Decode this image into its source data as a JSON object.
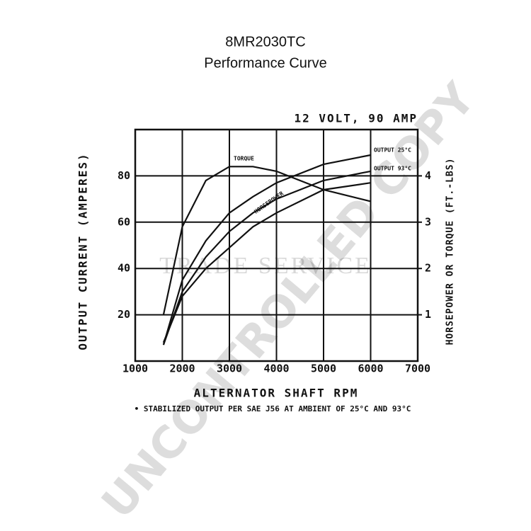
{
  "chart_data": {
    "type": "line",
    "title": "8MR2030TC",
    "subtitle": "Performance Curve",
    "annotation": "12 VOLT, 90 AMP",
    "x_label": "ALTERNATOR SHAFT RPM",
    "y_label": "OUTPUT CURRENT (AMPERES)",
    "y2_label": "HORSEPOWER OR TORQUE (FT.-LBS)",
    "footnote": "• STABILIZED OUTPUT PER SAE J56 AT AMBIENT OF 25°C AND 93°C",
    "watermark": "UNCONTROLLED COPY",
    "watermark_2": "TRADE SERVICE",
    "x": [
      1600,
      2000,
      2500,
      3000,
      3500,
      4000,
      5000,
      6000
    ],
    "series": [
      {
        "name": "OUTPUT 25°C",
        "color": "#111111",
        "values": [
          7,
          35,
          52,
          64,
          71,
          77,
          85,
          89
        ]
      },
      {
        "name": "OUTPUT 93°C",
        "color": "#111111",
        "values": [
          7,
          30,
          45,
          56,
          64,
          70,
          78,
          82
        ]
      },
      {
        "name": "TORQUE",
        "color": "#111111",
        "axis": "y2",
        "values": [
          1.0,
          2.9,
          3.9,
          4.2,
          4.2,
          4.1,
          3.7,
          3.45
        ]
      },
      {
        "name": "HORSEPOWER",
        "color": "#111111",
        "axis": "y2",
        "values": [
          0.4,
          1.4,
          2.0,
          2.45,
          2.9,
          3.2,
          3.7,
          3.85
        ]
      }
    ],
    "xlim": [
      1000,
      7000
    ],
    "xticks": [
      1000,
      2000,
      3000,
      4000,
      5000,
      6000,
      7000
    ],
    "ylim": [
      0,
      100
    ],
    "yticks": [
      20,
      40,
      60,
      80
    ],
    "y2lim": [
      0,
      5
    ],
    "y2ticks": [
      1,
      2,
      3,
      4
    ],
    "grid": true
  }
}
